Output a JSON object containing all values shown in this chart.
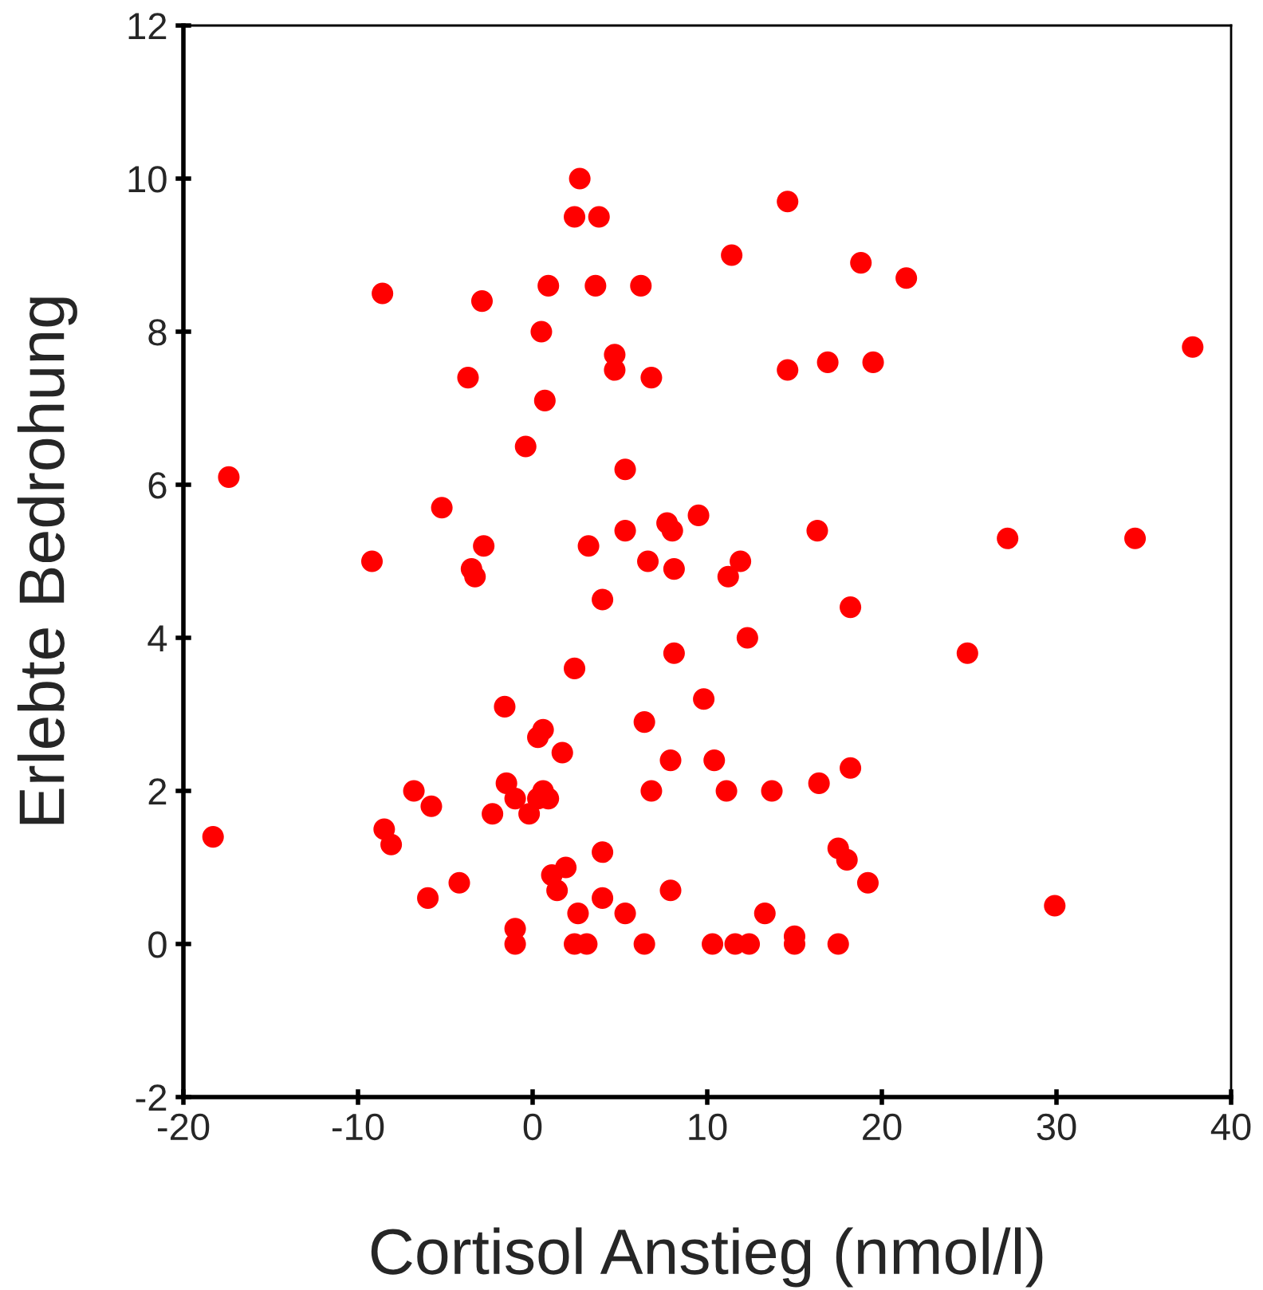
{
  "chart_data": {
    "type": "scatter",
    "xlabel": "Cortisol Anstieg (nmol/l)",
    "ylabel": "Erlebte Bedrohung",
    "xlim": [
      -20,
      40
    ],
    "xticks": [
      -20,
      -10,
      0,
      10,
      20,
      30,
      40
    ],
    "ylim": [
      -2,
      12
    ],
    "yticks": [
      -2,
      0,
      2,
      4,
      6,
      8,
      10,
      12
    ],
    "marker": "circle",
    "series": [
      {
        "color": "#ff0000",
        "x": [
          -18.3,
          -17.4,
          -8.6,
          -9.2,
          -8.5,
          -8.1,
          -6.0,
          -6.8,
          -5.8,
          -5.2,
          -4.2,
          -3.7,
          -3.5,
          -3.3,
          -2.9,
          -2.8,
          -2.3,
          -1.6,
          -1.5,
          -1.0,
          -1.0,
          -1.0,
          -0.4,
          -0.2,
          0.3,
          0.5,
          0.6,
          0.3,
          0.6,
          0.9,
          0.7,
          0.9,
          1.1,
          1.4,
          1.9,
          1.7,
          2.4,
          2.4,
          2.4,
          2.7,
          2.6,
          3.1,
          3.2,
          3.6,
          3.8,
          4.0,
          4.0,
          4.0,
          4.7,
          4.7,
          5.3,
          5.3,
          5.3,
          6.2,
          6.4,
          6.4,
          6.6,
          6.8,
          6.8,
          7.7,
          8.0,
          7.9,
          7.9,
          8.1,
          8.1,
          9.5,
          9.8,
          10.3,
          10.4,
          11.1,
          11.4,
          11.2,
          11.6,
          11.9,
          12.3,
          12.4,
          13.3,
          13.7,
          14.6,
          14.6,
          15.0,
          15.0,
          16.3,
          16.4,
          16.9,
          17.5,
          17.5,
          18.0,
          18.2,
          18.2,
          18.8,
          19.2,
          19.5,
          21.4,
          24.9,
          27.2,
          29.9,
          34.5,
          37.8
        ],
        "values": [
          1.4,
          6.1,
          8.5,
          5.0,
          1.5,
          1.3,
          0.6,
          2.0,
          1.8,
          5.7,
          0.8,
          7.4,
          4.9,
          4.8,
          8.4,
          5.2,
          1.7,
          3.1,
          2.1,
          1.9,
          0.2,
          0,
          6.5,
          1.7,
          2.7,
          8.0,
          2.8,
          1.9,
          2.0,
          1.9,
          7.1,
          8.6,
          0.9,
          0.7,
          1.0,
          2.5,
          9.5,
          3.6,
          0,
          10.0,
          0.4,
          0,
          5.2,
          8.6,
          9.5,
          4.5,
          1.2,
          0.6,
          7.7,
          7.5,
          6.2,
          5.4,
          0.4,
          8.6,
          2.9,
          0,
          5.0,
          7.4,
          2.0,
          5.5,
          5.4,
          2.4,
          0.7,
          4.9,
          3.8,
          5.6,
          3.2,
          0,
          2.4,
          2.0,
          9.0,
          4.8,
          0,
          5.0,
          4.0,
          0,
          0.4,
          2.0,
          9.7,
          7.5,
          0.1,
          0,
          5.4,
          2.1,
          7.6,
          0,
          1.25,
          1.1,
          4.4,
          2.3,
          8.9,
          0.8,
          7.6,
          8.7,
          3.8,
          5.3,
          0.5,
          5.3,
          7.8
        ]
      }
    ]
  }
}
